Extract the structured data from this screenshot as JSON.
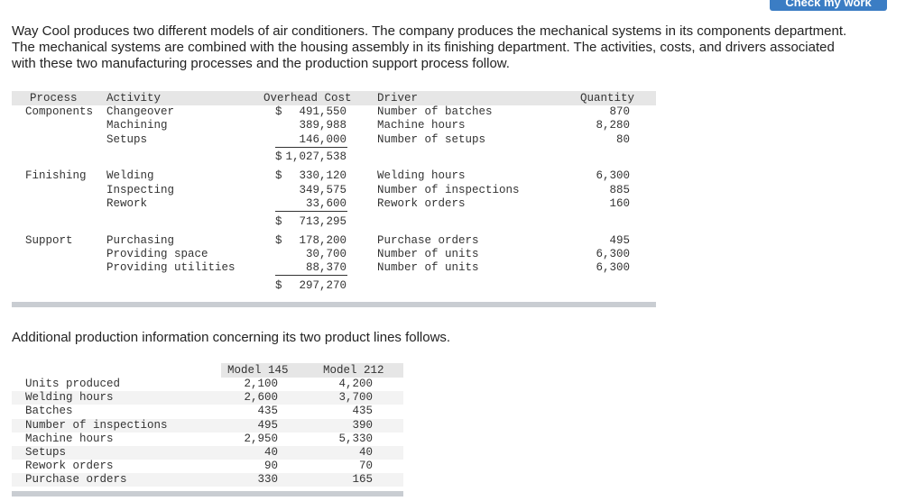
{
  "check_button": "Check my work",
  "intro": "Way Cool produces two different models of air conditioners. The company produces the mechanical systems in its components department. The mechanical systems are combined with the housing assembly in its finishing department. The activities, costs, and drivers associated with these two manufacturing processes and the production support process follow.",
  "table1": {
    "headers": [
      "Process",
      "Activity",
      "Overhead Cost",
      "Driver",
      "Quantity"
    ],
    "groups": [
      {
        "process": "Components",
        "total_symbol": "$",
        "total": "1,027,538",
        "rows": [
          {
            "activity": "Changeover",
            "cost_symbol": "$",
            "cost": "491,550",
            "driver": "Number of batches",
            "quantity": "870"
          },
          {
            "activity": "Machining",
            "cost": "389,988",
            "driver": "Machine hours",
            "quantity": "8,280"
          },
          {
            "activity": "Setups",
            "cost": "146,000",
            "driver": "Number of setups",
            "quantity": "80"
          }
        ]
      },
      {
        "process": "Finishing",
        "total_symbol": "$",
        "total": "713,295",
        "rows": [
          {
            "activity": "Welding",
            "cost_symbol": "$",
            "cost": "330,120",
            "driver": "Welding hours",
            "quantity": "6,300"
          },
          {
            "activity": "Inspecting",
            "cost": "349,575",
            "driver": "Number of inspections",
            "quantity": "885"
          },
          {
            "activity": "Rework",
            "cost": "33,600",
            "driver": "Rework orders",
            "quantity": "160"
          }
        ]
      },
      {
        "process": "Support",
        "total_symbol": "$",
        "total": "297,270",
        "rows": [
          {
            "activity": "Purchasing",
            "cost_symbol": "$",
            "cost": "178,200",
            "driver": "Purchase orders",
            "quantity": "495"
          },
          {
            "activity": "Providing space",
            "cost": "30,700",
            "driver": "Number of units",
            "quantity": "6,300"
          },
          {
            "activity": "Providing utilities",
            "cost": "88,370",
            "driver": "Number of units",
            "quantity": "6,300"
          }
        ]
      }
    ]
  },
  "additional": "Additional production information concerning its two product lines follows.",
  "table2": {
    "headers": [
      "Model 145",
      "Model 212"
    ],
    "rows": [
      [
        "Units produced",
        "2,100",
        "4,200"
      ],
      [
        "Welding hours",
        "2,600",
        "3,700"
      ],
      [
        "Batches",
        "435",
        "435"
      ],
      [
        "Number of inspections",
        "495",
        "390"
      ],
      [
        "Machine hours",
        "2,950",
        "5,330"
      ],
      [
        "Setups",
        "40",
        "40"
      ],
      [
        "Rework orders",
        "90",
        "70"
      ],
      [
        "Purchase orders",
        "330",
        "165"
      ]
    ]
  }
}
